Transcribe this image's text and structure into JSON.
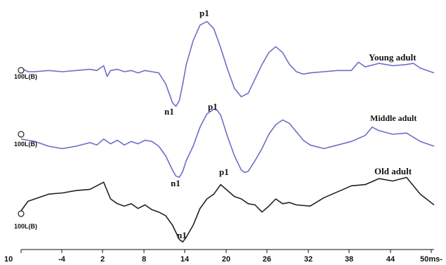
{
  "chart_data": {
    "type": "line",
    "x_unit": "ms",
    "x_ticks": [
      "10",
      "-4",
      "2",
      "8",
      "14",
      "20",
      "26",
      "32",
      "38",
      "44",
      "50ms-"
    ],
    "colors": {
      "Young adult": "#6a6fc8",
      "Middle adult": "#6a6fc8",
      "Old adult": "#222222"
    },
    "series": [
      {
        "name": "Young adult",
        "channel": "100L(B)",
        "peak_labels": [
          "n1",
          "p1"
        ],
        "x": [
          -10,
          -9,
          -8,
          -6,
          -4,
          -2,
          0,
          1,
          2,
          2.5,
          3,
          4,
          5,
          6,
          7,
          8,
          9,
          10,
          11,
          12,
          12.5,
          13,
          13.5,
          14,
          15,
          16,
          17,
          18,
          19,
          20,
          21,
          22,
          23,
          24,
          25,
          26,
          27,
          28,
          29,
          30,
          31,
          32,
          34,
          36,
          38,
          39,
          40,
          42,
          44,
          46,
          47,
          48,
          50
        ],
        "y": [
          0.15,
          0.0,
          0.0,
          0.05,
          0.0,
          0.05,
          0.1,
          0.05,
          0.25,
          -0.2,
          0.05,
          0.1,
          0.0,
          0.05,
          -0.05,
          0.05,
          0.0,
          -0.05,
          -0.5,
          -1.3,
          -1.45,
          -1.2,
          -0.5,
          0.3,
          1.3,
          1.95,
          2.1,
          1.8,
          1.0,
          0.1,
          -0.7,
          -1.05,
          -0.9,
          -0.3,
          0.3,
          0.8,
          1.05,
          0.8,
          0.3,
          0.0,
          -0.1,
          -0.05,
          0.0,
          0.05,
          0.05,
          0.4,
          0.2,
          0.35,
          0.25,
          0.3,
          0.35,
          0.15,
          -0.05
        ]
      },
      {
        "name": "Middle adult",
        "channel": "100L(B)",
        "peak_labels": [
          "n1",
          "p1"
        ],
        "x": [
          -10,
          -9,
          -8,
          -6,
          -4,
          -2,
          0,
          1,
          2,
          3,
          4,
          5,
          6,
          7,
          8,
          9,
          10,
          11,
          12,
          12.5,
          13,
          13.5,
          14,
          15,
          16,
          17,
          18,
          18.5,
          19,
          20,
          21,
          22,
          22.5,
          23,
          24,
          25,
          26,
          27,
          28,
          29,
          30,
          31,
          32,
          34,
          36,
          38,
          40,
          41,
          42,
          44,
          46,
          48,
          50
        ],
        "y": [
          0.3,
          0.25,
          0.2,
          0.0,
          -0.1,
          0.0,
          0.15,
          0.05,
          0.3,
          0.1,
          0.25,
          0.05,
          0.2,
          0.1,
          0.25,
          0.2,
          0.0,
          -0.4,
          -1.0,
          -1.25,
          -1.3,
          -1.05,
          -0.6,
          0.0,
          0.8,
          1.35,
          1.55,
          1.5,
          1.3,
          0.4,
          -0.4,
          -1.0,
          -1.1,
          -1.05,
          -0.6,
          -0.1,
          0.5,
          0.9,
          1.1,
          0.95,
          0.6,
          0.25,
          0.05,
          -0.1,
          0.05,
          0.2,
          0.45,
          0.8,
          0.65,
          0.5,
          0.55,
          0.2,
          0.0
        ]
      },
      {
        "name": "Old adult",
        "channel": "100L(B)",
        "peak_labels": [
          "n1",
          "p1"
        ],
        "x": [
          -10,
          -9,
          -8,
          -6,
          -4,
          -2,
          0,
          1,
          2,
          3,
          4,
          5,
          6,
          7,
          8,
          9,
          10,
          11,
          12,
          13,
          13.5,
          14,
          15,
          16,
          17,
          18,
          19,
          20,
          21,
          22,
          23,
          24,
          25,
          26,
          27,
          28,
          29,
          30,
          32,
          34,
          36,
          38,
          40,
          42,
          44,
          46,
          48,
          50
        ],
        "y": [
          0.0,
          0.4,
          0.5,
          0.7,
          0.75,
          0.85,
          0.9,
          1.05,
          1.2,
          0.5,
          0.3,
          0.2,
          0.3,
          0.1,
          0.25,
          0.05,
          -0.05,
          -0.2,
          -0.6,
          -1.2,
          -1.3,
          -1.1,
          -0.6,
          0.1,
          0.5,
          0.7,
          1.1,
          0.85,
          0.6,
          0.5,
          0.3,
          0.25,
          -0.05,
          0.2,
          0.5,
          0.3,
          0.35,
          0.25,
          0.2,
          0.55,
          0.8,
          1.05,
          1.1,
          1.35,
          1.25,
          1.4,
          0.7,
          0.25
        ]
      }
    ]
  }
}
